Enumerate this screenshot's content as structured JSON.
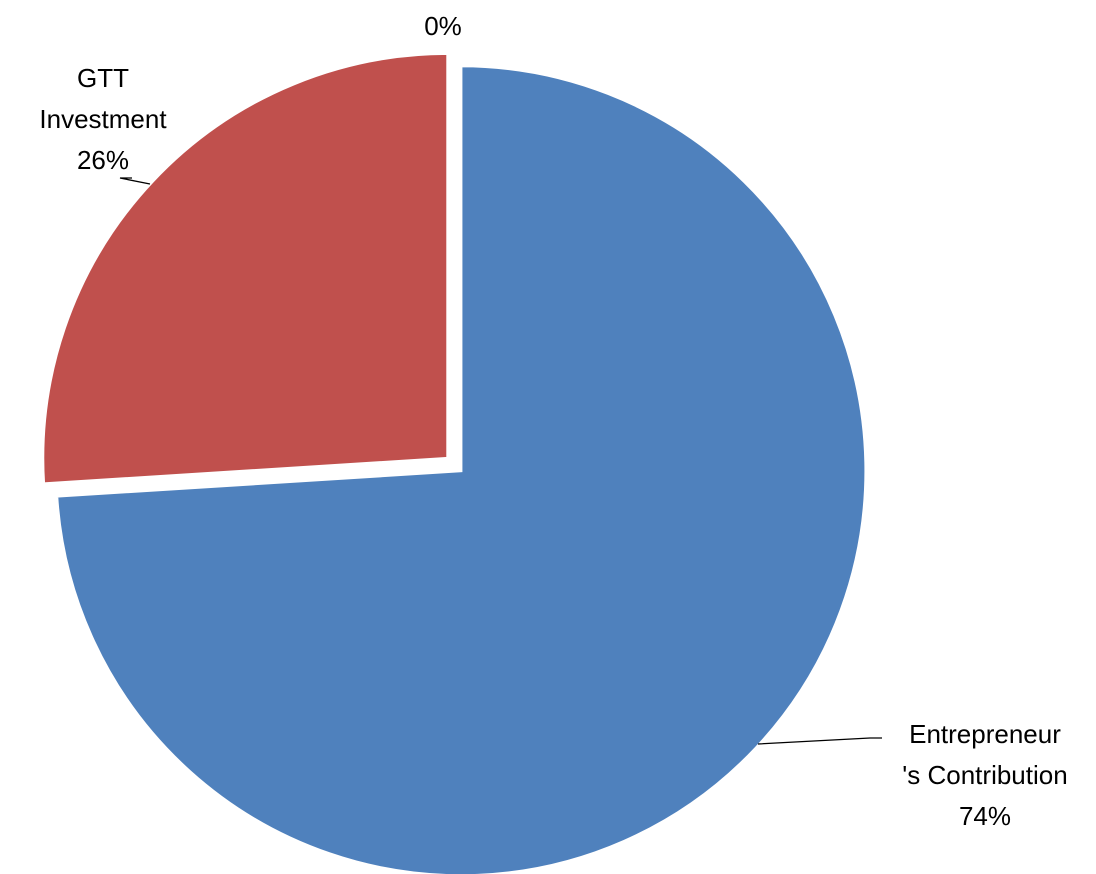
{
  "chart_data": {
    "type": "pie",
    "categories": [
      "Entrepreneur's Contribution",
      "GTT Investment",
      null
    ],
    "values": [
      74,
      26,
      0
    ],
    "value_labels": [
      "74%",
      "26%",
      "0%"
    ],
    "colors": [
      "#4f81bd",
      "#c0504d",
      "#9bbb59"
    ]
  }
}
